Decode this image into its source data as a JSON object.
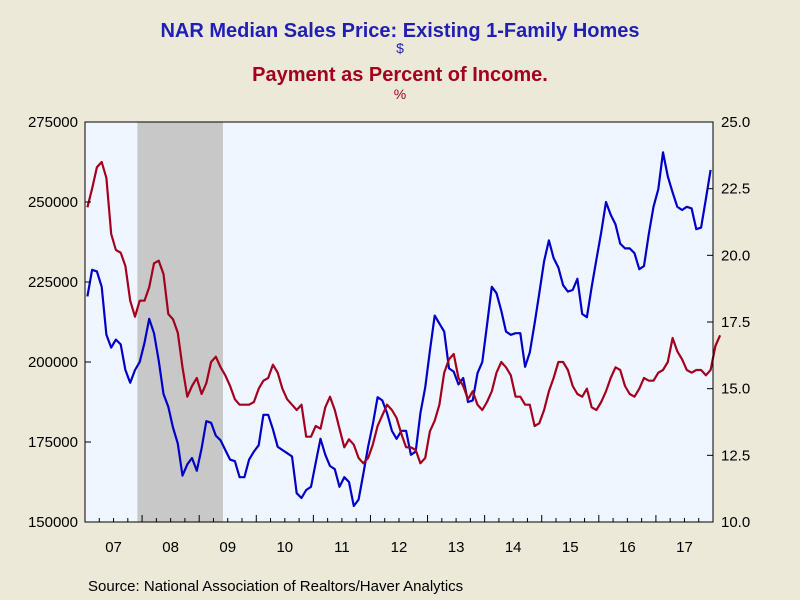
{
  "header": {
    "title1": "NAR Median Sales Price: Existing 1-Family Homes",
    "units1": "$",
    "title2": "Payment as Percent of Income.",
    "units2": "%"
  },
  "source": "Source:  National Association of Realtors/Haver Analytics",
  "colors": {
    "price": "#0000c8",
    "payment": "#a3001f",
    "recession": "#c8c8c8",
    "plot_bg": "#f0f6ff"
  },
  "chart_data": {
    "type": "line",
    "x_start": "2007-01",
    "x_end": "2017-12",
    "x_tick_labels": [
      "07",
      "08",
      "09",
      "10",
      "11",
      "12",
      "13",
      "14",
      "15",
      "16",
      "17"
    ],
    "y_left": {
      "ylim": [
        150000,
        275000
      ],
      "ticks": [
        150000,
        175000,
        200000,
        225000,
        250000,
        275000
      ]
    },
    "y_right": {
      "ylim": [
        10.0,
        25.0
      ],
      "ticks": [
        "10.0",
        "12.5",
        "15.0",
        "17.5",
        "20.0",
        "22.5",
        "25.0"
      ]
    },
    "recession_shading": {
      "start": "2007-12",
      "end": "2009-06"
    },
    "series": [
      {
        "name": "NAR Median Sales Price: Existing 1-Family Homes",
        "axis": "left",
        "values": [
          220500,
          228800,
          228300,
          223500,
          208500,
          204500,
          207000,
          205500,
          197500,
          193500,
          197500,
          200000,
          206000,
          213500,
          209000,
          200500,
          190000,
          186000,
          179500,
          174500,
          164500,
          168000,
          170000,
          166000,
          173000,
          181500,
          181000,
          177000,
          175500,
          172500,
          169500,
          169000,
          164000,
          164000,
          169500,
          172000,
          174000,
          183500,
          183500,
          179000,
          173500,
          172500,
          171500,
          170500,
          159000,
          157500,
          160000,
          161000,
          168500,
          176000,
          171000,
          167500,
          166500,
          161000,
          164000,
          162500,
          155000,
          157000,
          165000,
          173500,
          180500,
          189000,
          188000,
          184000,
          178500,
          176000,
          178500,
          178500,
          171000,
          172000,
          184000,
          192000,
          203500,
          214500,
          212000,
          209500,
          198000,
          197000,
          193000,
          195000,
          187500,
          188000,
          196500,
          200000,
          211500,
          223500,
          221500,
          216000,
          209500,
          208500,
          209000,
          209000,
          198500,
          203000,
          212000,
          221500,
          231500,
          238000,
          232500,
          229500,
          224000,
          222000,
          222500,
          226000,
          215000,
          214000,
          223500,
          232000,
          240500,
          250000,
          246000,
          243000,
          237000,
          235500,
          235500,
          234000,
          229000,
          230000,
          240000,
          248500,
          254000,
          265500,
          258000,
          253000,
          248500,
          247500,
          248500,
          248000,
          241500,
          242000,
          251000,
          260000
        ]
      },
      {
        "name": "Payment as Percent of Income",
        "axis": "right",
        "values": [
          21.8,
          22.5,
          23.3,
          23.5,
          22.9,
          20.8,
          20.2,
          20.1,
          19.6,
          18.3,
          17.7,
          18.3,
          18.3,
          18.8,
          19.7,
          19.8,
          19.3,
          17.8,
          17.6,
          17.1,
          15.8,
          14.7,
          15.1,
          15.4,
          14.8,
          15.2,
          16.0,
          16.2,
          15.8,
          15.5,
          15.1,
          14.6,
          14.4,
          14.4,
          14.4,
          14.5,
          15.0,
          15.3,
          15.4,
          15.9,
          15.6,
          15.0,
          14.6,
          14.4,
          14.2,
          14.4,
          13.2,
          13.2,
          13.6,
          13.5,
          14.3,
          14.7,
          14.2,
          13.5,
          12.8,
          13.1,
          12.9,
          12.4,
          12.2,
          12.4,
          12.9,
          13.6,
          14.0,
          14.4,
          14.2,
          13.9,
          13.3,
          12.8,
          12.8,
          12.7,
          12.2,
          12.4,
          13.4,
          13.8,
          14.4,
          15.6,
          16.1,
          16.3,
          15.4,
          15.1,
          14.6,
          14.9,
          14.4,
          14.2,
          14.5,
          14.9,
          15.6,
          16.0,
          15.8,
          15.5,
          14.7,
          14.7,
          14.4,
          14.4,
          13.6,
          13.7,
          14.2,
          14.9,
          15.4,
          16.0,
          16.0,
          15.7,
          15.1,
          14.8,
          14.7,
          15.0,
          14.3,
          14.2,
          14.5,
          14.9,
          15.4,
          15.8,
          15.7,
          15.1,
          14.8,
          14.7,
          15.0,
          15.4,
          15.3,
          15.3,
          15.6,
          15.7,
          16.0,
          16.9,
          16.4,
          16.1,
          15.7,
          15.6,
          15.7,
          15.7,
          15.5,
          15.7,
          16.6,
          17.0
        ]
      }
    ]
  }
}
